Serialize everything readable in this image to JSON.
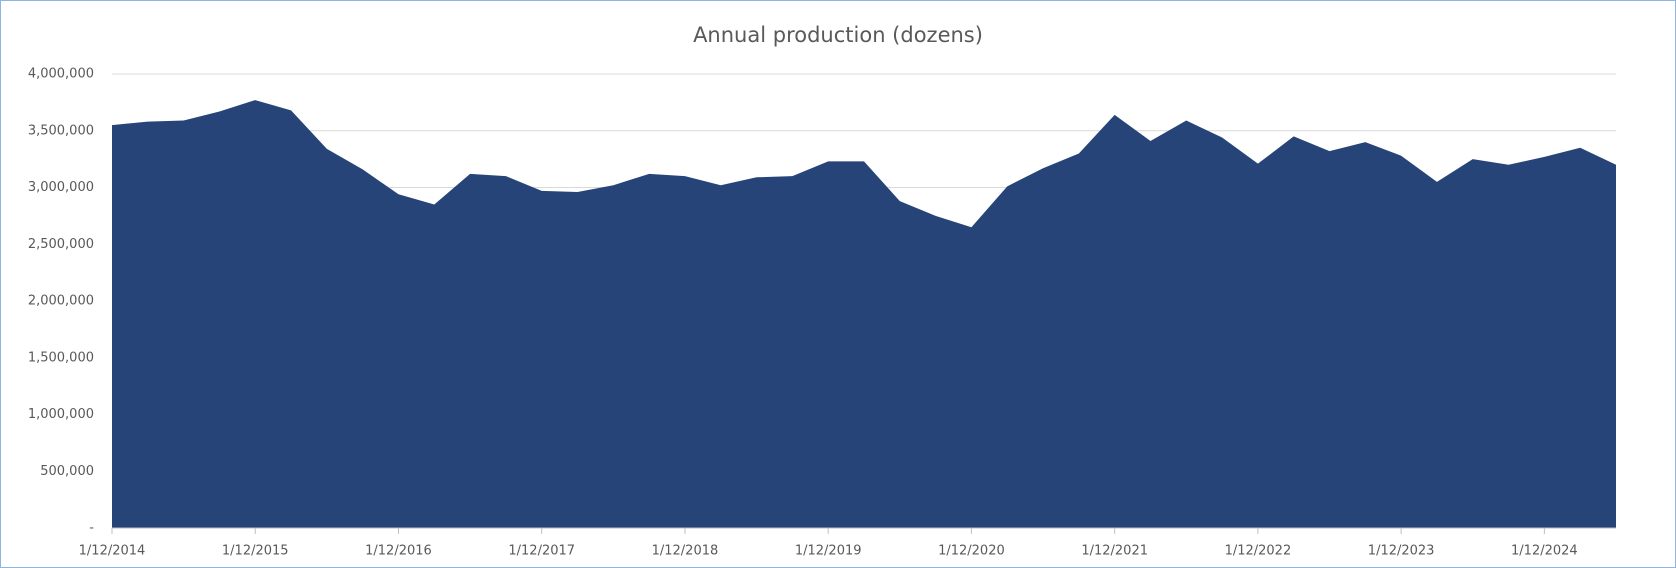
{
  "chart_data": {
    "type": "area",
    "title": "Annual production (dozens)",
    "categories": [
      "1/12/2014",
      null,
      null,
      null,
      "1/12/2015",
      null,
      null,
      null,
      "1/12/2016",
      null,
      null,
      null,
      "1/12/2017",
      null,
      null,
      null,
      "1/12/2018",
      null,
      null,
      null,
      "1/12/2019",
      null,
      null,
      null,
      "1/12/2020",
      null,
      null,
      null,
      "1/12/2021",
      null,
      null,
      null,
      "1/12/2022",
      null,
      null,
      null,
      "1/12/2023",
      null,
      null,
      null,
      "1/12/2024",
      null,
      null
    ],
    "series": [
      {
        "name": "Annual production (dozens)",
        "color": "#264478",
        "values": [
          3550000,
          3580000,
          3590000,
          3670000,
          3770000,
          3680000,
          3340000,
          3160000,
          2940000,
          2850000,
          3120000,
          3100000,
          2970000,
          2960000,
          3020000,
          3120000,
          3100000,
          3020000,
          3090000,
          3100000,
          3230000,
          3230000,
          2880000,
          2750000,
          2650000,
          3010000,
          3170000,
          3300000,
          3640000,
          3410000,
          3590000,
          3440000,
          3210000,
          3450000,
          3320000,
          3400000,
          3280000,
          3050000,
          3250000,
          3200000,
          3270000,
          3350000,
          3200000
        ]
      }
    ],
    "ylim": [
      0,
      4000000
    ],
    "yticks": [
      {
        "value": 0,
        "label": "-"
      },
      {
        "value": 500000,
        "label": "500,000"
      },
      {
        "value": 1000000,
        "label": "1,000,000"
      },
      {
        "value": 1500000,
        "label": "1,500,000"
      },
      {
        "value": 2000000,
        "label": "2,000,000"
      },
      {
        "value": 2500000,
        "label": "2,500,000"
      },
      {
        "value": 3000000,
        "label": "3,000,000"
      },
      {
        "value": 3500000,
        "label": "3,500,000"
      },
      {
        "value": 4000000,
        "label": "4,000,000"
      }
    ],
    "grid": true
  }
}
